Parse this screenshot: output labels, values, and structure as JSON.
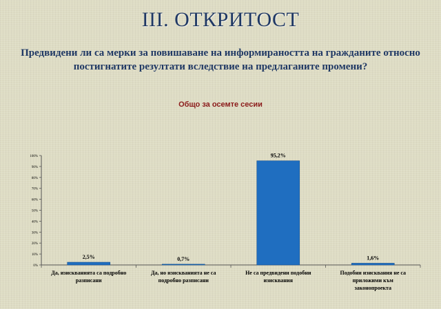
{
  "slide": {
    "title": "III. ОТКРИТОСТ",
    "question_line1": "Предвидени ли са мерки за повишаване на информираността на гражданите относно",
    "question_line2": "постигнатите резултати вследствие на предлаганите промени?"
  },
  "chart_data": {
    "type": "bar",
    "title": "Общо за осемте сесии",
    "categories": [
      [
        "Да, изискванията са подробно",
        "разписани"
      ],
      [
        "Да, но изискванията не са",
        "подробно разписани"
      ],
      [
        "Не са предвидени подобни",
        "изисквания"
      ],
      [
        "Подобни изисквания не са",
        "приложими към",
        "законопроекта"
      ]
    ],
    "values": [
      2.5,
      0.7,
      95.2,
      1.6
    ],
    "data_labels": [
      "2,5%",
      "0,7%",
      "95,2%",
      "1,6%"
    ],
    "ylim": [
      0,
      100
    ],
    "yticks": [
      "0%",
      "10%",
      "20%",
      "30%",
      "40%",
      "50%",
      "60%",
      "70%",
      "80%",
      "90%",
      "100%"
    ],
    "grid": false,
    "legend": "none",
    "bar_color": "#1f6ec0"
  }
}
